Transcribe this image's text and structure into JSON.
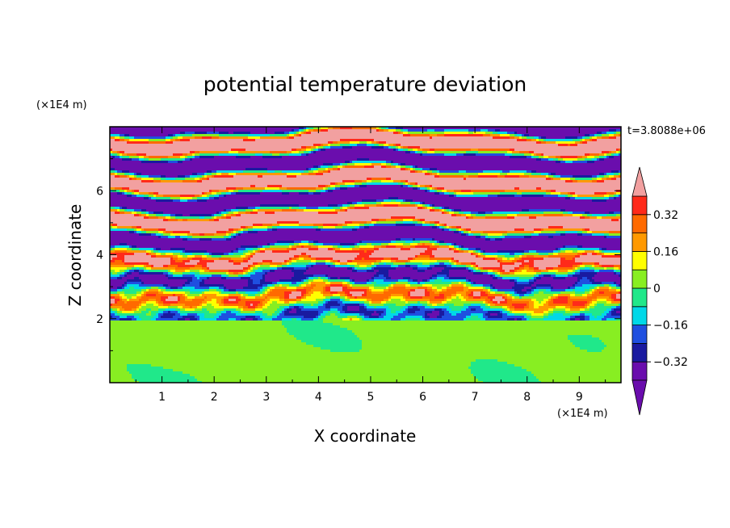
{
  "chart_data": {
    "type": "heatmap",
    "title": "potential temperature deviation",
    "xlabel": "X coordinate",
    "ylabel": "Z coordinate",
    "x_unit": "(×1E4 m)",
    "y_unit": "(×1E4 m)",
    "time_label": "t=3.8088e+06",
    "xlim": [
      0,
      9.8
    ],
    "ylim": [
      0,
      8
    ],
    "x_ticks": [
      1,
      2,
      3,
      4,
      5,
      6,
      7,
      8,
      9
    ],
    "x_tick_labels": [
      "1",
      "2",
      "3",
      "4",
      "5",
      "6",
      "7",
      "8",
      "9"
    ],
    "y_ticks": [
      2,
      4,
      6
    ],
    "y_tick_labels": [
      "2",
      "4",
      "6"
    ],
    "colorbar": {
      "levels": [
        -0.4,
        -0.32,
        -0.24,
        -0.16,
        -0.08,
        0,
        0.08,
        0.16,
        0.24,
        0.32,
        0.4
      ],
      "tick_labels": [
        "0.32",
        "0.16",
        "0",
        "−0.16",
        "−0.32"
      ],
      "tick_values": [
        0.32,
        0.16,
        0,
        -0.16,
        -0.32
      ],
      "colors": [
        "#6a0dad",
        "#1a1aa0",
        "#1f4fe0",
        "#00d8e8",
        "#20e88a",
        "#88ee22",
        "#ffff00",
        "#ff9900",
        "#ff6a00",
        "#ff2a1a",
        "#f2a0a0"
      ],
      "over_color": "#f2a0a0",
      "under_color": "#6a0dad"
    },
    "notes": "Upper layer (z>2) shows alternating pink (>0.4) and purple (<-0.4) streaks; lower boundary layer (z<2) is near zero (green)."
  }
}
